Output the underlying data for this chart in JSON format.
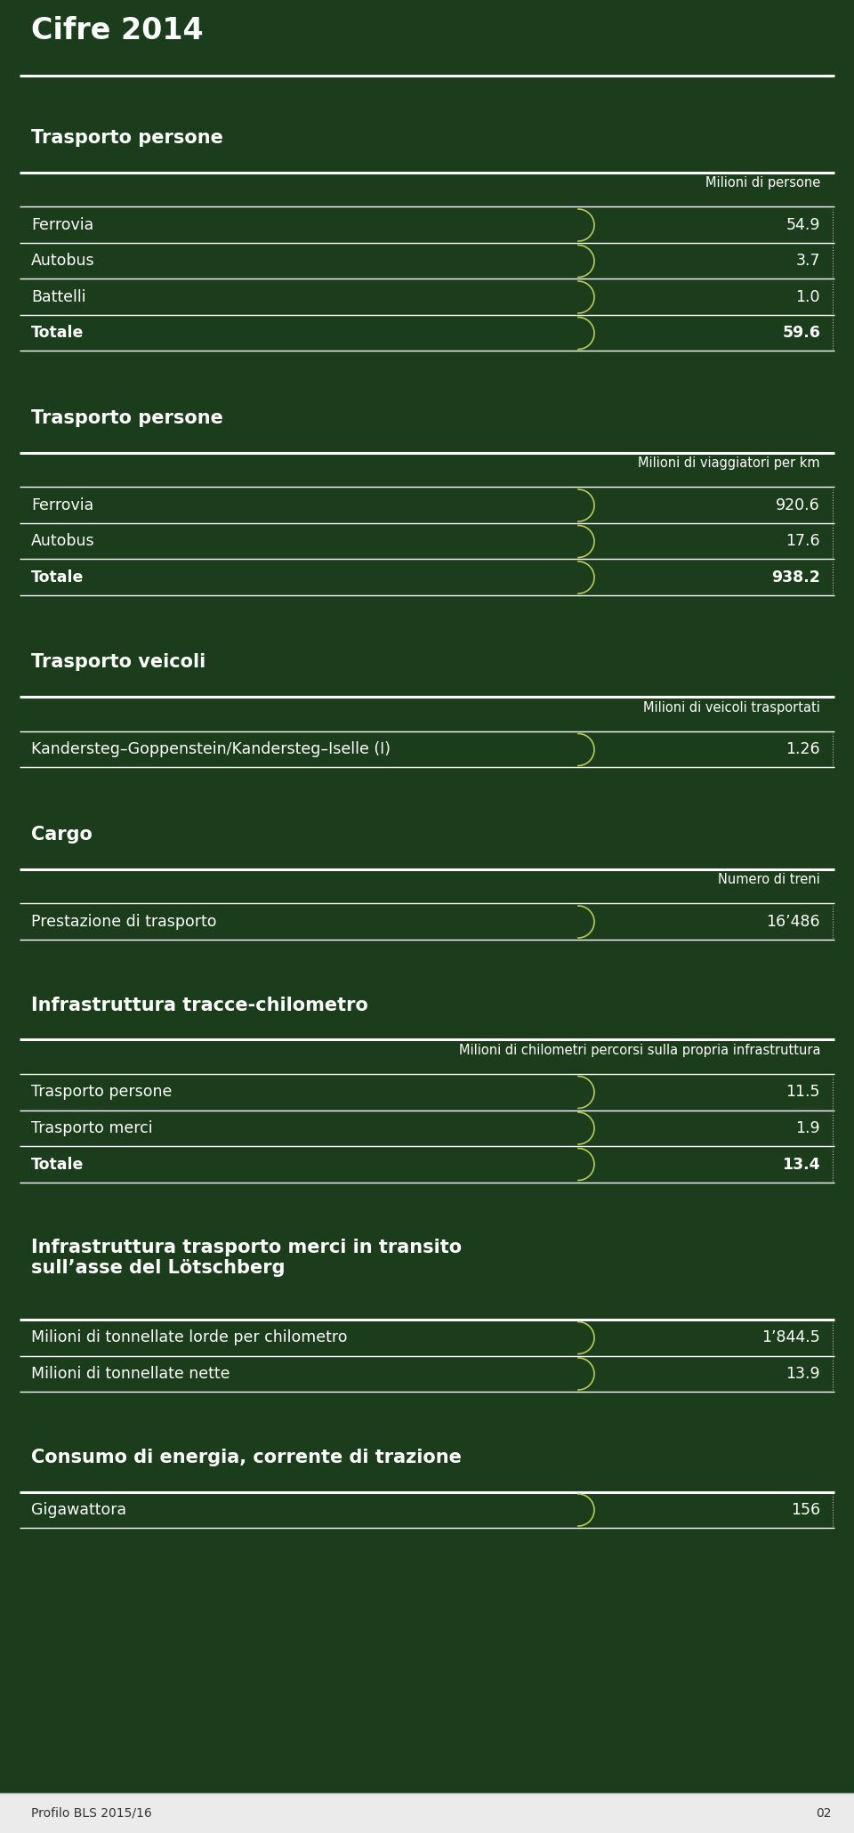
{
  "title": "Cifre 2014",
  "bg_color": "#1b3d1b",
  "text_color": "#ffffff",
  "line_color": "#ffffff",
  "curve_color": "#b8cc5a",
  "footer_bg": "#ebebeb",
  "footer_text": "Profilo BLS 2015/16",
  "footer_num": "02",
  "fig_width": 9.6,
  "fig_height": 20.6,
  "sections": [
    {
      "section_title": "Trasporto persone",
      "unit_label": "Milioni di persone",
      "rows": [
        {
          "label": "Ferrovia",
          "value": "54.9",
          "bold": false
        },
        {
          "label": "Autobus",
          "value": "3.7",
          "bold": false
        },
        {
          "label": "Battelli",
          "value": "1.0",
          "bold": false
        },
        {
          "label": "Totale",
          "value": "59.6",
          "bold": true
        }
      ]
    },
    {
      "section_title": "Trasporto persone",
      "unit_label": "Milioni di viaggiatori per km",
      "rows": [
        {
          "label": "Ferrovia",
          "value": "920.6",
          "bold": false
        },
        {
          "label": "Autobus",
          "value": "17.6",
          "bold": false
        },
        {
          "label": "Totale",
          "value": "938.2",
          "bold": true
        }
      ]
    },
    {
      "section_title": "Trasporto veicoli",
      "unit_label": "Milioni di veicoli trasportati",
      "rows": [
        {
          "label": "Kandersteg–Goppenstein/Kandersteg–Iselle (I)",
          "value": "1.26",
          "bold": false
        }
      ]
    },
    {
      "section_title": "Cargo",
      "unit_label": "Numero di treni",
      "rows": [
        {
          "label": "Prestazione di trasporto",
          "value": "16’486",
          "bold": false
        }
      ]
    },
    {
      "section_title": "Infrastruttura tracce-chilometro",
      "unit_label": "Milioni di chilometri percorsi sulla propria infrastruttura",
      "rows": [
        {
          "label": "Trasporto persone",
          "value": "11.5",
          "bold": false
        },
        {
          "label": "Trasporto merci",
          "value": "1.9",
          "bold": false
        },
        {
          "label": "Totale",
          "value": "13.4",
          "bold": true
        }
      ]
    },
    {
      "section_title": "Infrastruttura trasporto merci in transito\nsull’asse del Lötschberg",
      "unit_label": null,
      "rows": [
        {
          "label": "Milioni di tonnellate lorde per chilometro",
          "value": "1’844.5",
          "bold": false
        },
        {
          "label": "Milioni di tonnellate nette",
          "value": "13.9",
          "bold": false
        }
      ]
    },
    {
      "section_title": "Consumo di energia, corrente di trazione",
      "unit_label": null,
      "rows": [
        {
          "label": "Gigawattora",
          "value": "156",
          "bold": false
        }
      ]
    }
  ]
}
